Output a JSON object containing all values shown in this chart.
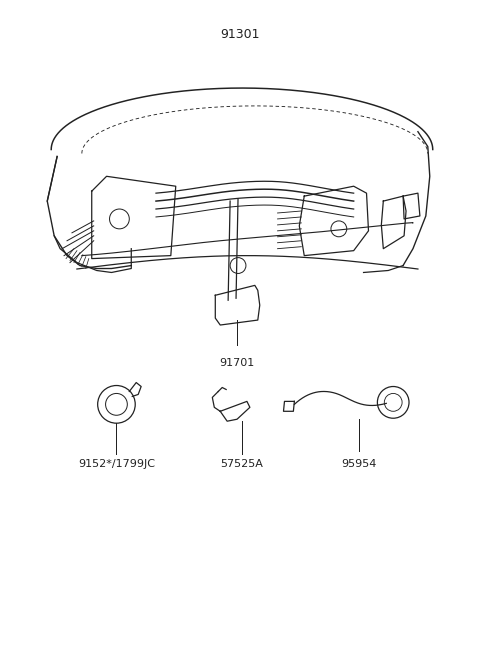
{
  "title": "91301",
  "bg_color": "#ffffff",
  "line_color": "#222222",
  "title_fontsize": 9,
  "label_fontsize": 8,
  "main_label": "91701",
  "part_labels": [
    "9152*/1799JC",
    "57525A",
    "95954"
  ],
  "figsize": [
    4.8,
    6.57
  ],
  "dpi": 100
}
